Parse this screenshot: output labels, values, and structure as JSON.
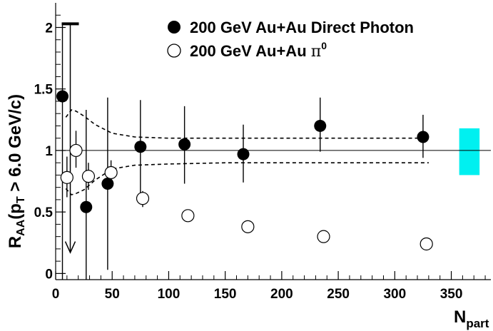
{
  "chart_data": {
    "type": "scatter",
    "title": "",
    "xlabel": {
      "main": "N",
      "sub": "part"
    },
    "ylabel": {
      "r": "R",
      "r_sub": "AA",
      "open": "(p",
      "p_sub": "T",
      "rest": " > 6.0 GeV/c)"
    },
    "xlim": [
      0,
      385
    ],
    "ylim": [
      -0.05,
      2.2
    ],
    "xticks": [
      "0",
      "50",
      "100",
      "150",
      "200",
      "250",
      "300",
      "350"
    ],
    "yticks": [
      "0",
      "0.5",
      "1",
      "1.5",
      "2"
    ],
    "reference_line": 1,
    "grid": false,
    "legend_position": "top-right",
    "series": [
      {
        "name": "200 GeV Au+Au Direct Photon",
        "marker": "filled-circle",
        "color": "#000000",
        "points": [
          {
            "x": 6,
            "y": 1.44,
            "lo": -0.05,
            "hi": 2.03,
            "upper_limit": true
          },
          {
            "x": 27,
            "y": 0.54,
            "lo": -0.05,
            "hi": 1.33
          },
          {
            "x": 46,
            "y": 0.73,
            "lo": 0.03,
            "hi": 1.43
          },
          {
            "x": 75,
            "y": 1.03,
            "lo": 0.65,
            "hi": 1.41
          },
          {
            "x": 114,
            "y": 1.05,
            "lo": 0.73,
            "hi": 1.36
          },
          {
            "x": 166,
            "y": 0.97,
            "lo": 0.74,
            "hi": 1.21
          },
          {
            "x": 234,
            "y": 1.2,
            "lo": 0.99,
            "hi": 1.43
          },
          {
            "x": 325,
            "y": 1.11,
            "lo": 0.94,
            "hi": 1.29
          }
        ]
      },
      {
        "name_prefix": "200 GeV Au+Au ",
        "name_greek": "π",
        "name_sup": "0",
        "marker": "open-circle",
        "color": "#000000",
        "points": [
          {
            "x": 10,
            "y": 0.78,
            "lo": 0.62,
            "hi": 0.95
          },
          {
            "x": 18,
            "y": 1.0,
            "lo": 0.86,
            "hi": 1.16
          },
          {
            "x": 29,
            "y": 0.79,
            "lo": 0.68,
            "hi": 0.9
          },
          {
            "x": 49,
            "y": 0.82,
            "lo": 0.72,
            "hi": 0.92
          },
          {
            "x": 77,
            "y": 0.61,
            "lo": 0.54,
            "hi": 0.67
          },
          {
            "x": 117,
            "y": 0.47,
            "lo": 0.43,
            "hi": 0.52
          },
          {
            "x": 170,
            "y": 0.38,
            "lo": 0.35,
            "hi": 0.42
          },
          {
            "x": 237,
            "y": 0.3,
            "lo": 0.28,
            "hi": 0.32
          },
          {
            "x": 328,
            "y": 0.24,
            "lo": 0.23,
            "hi": 0.26
          }
        ]
      }
    ],
    "theory_band": {
      "style": "dashed",
      "upper": [
        [
          9,
          1.27
        ],
        [
          14,
          1.33
        ],
        [
          18,
          1.32
        ],
        [
          25,
          1.28
        ],
        [
          35,
          1.21
        ],
        [
          50,
          1.14
        ],
        [
          70,
          1.11
        ],
        [
          100,
          1.1
        ],
        [
          150,
          1.1
        ],
        [
          200,
          1.1
        ],
        [
          250,
          1.1
        ],
        [
          330,
          1.1
        ]
      ],
      "lower": [
        [
          9,
          0.69
        ],
        [
          14,
          0.64
        ],
        [
          18,
          0.65
        ],
        [
          25,
          0.68
        ],
        [
          35,
          0.76
        ],
        [
          50,
          0.85
        ],
        [
          70,
          0.88
        ],
        [
          100,
          0.89
        ],
        [
          150,
          0.9
        ],
        [
          200,
          0.9
        ],
        [
          250,
          0.9
        ],
        [
          330,
          0.9
        ]
      ]
    },
    "systematic_box": {
      "x0": 357,
      "x1": 375,
      "y0": 0.8,
      "y1": 1.18,
      "color": "#00f0f0"
    }
  }
}
